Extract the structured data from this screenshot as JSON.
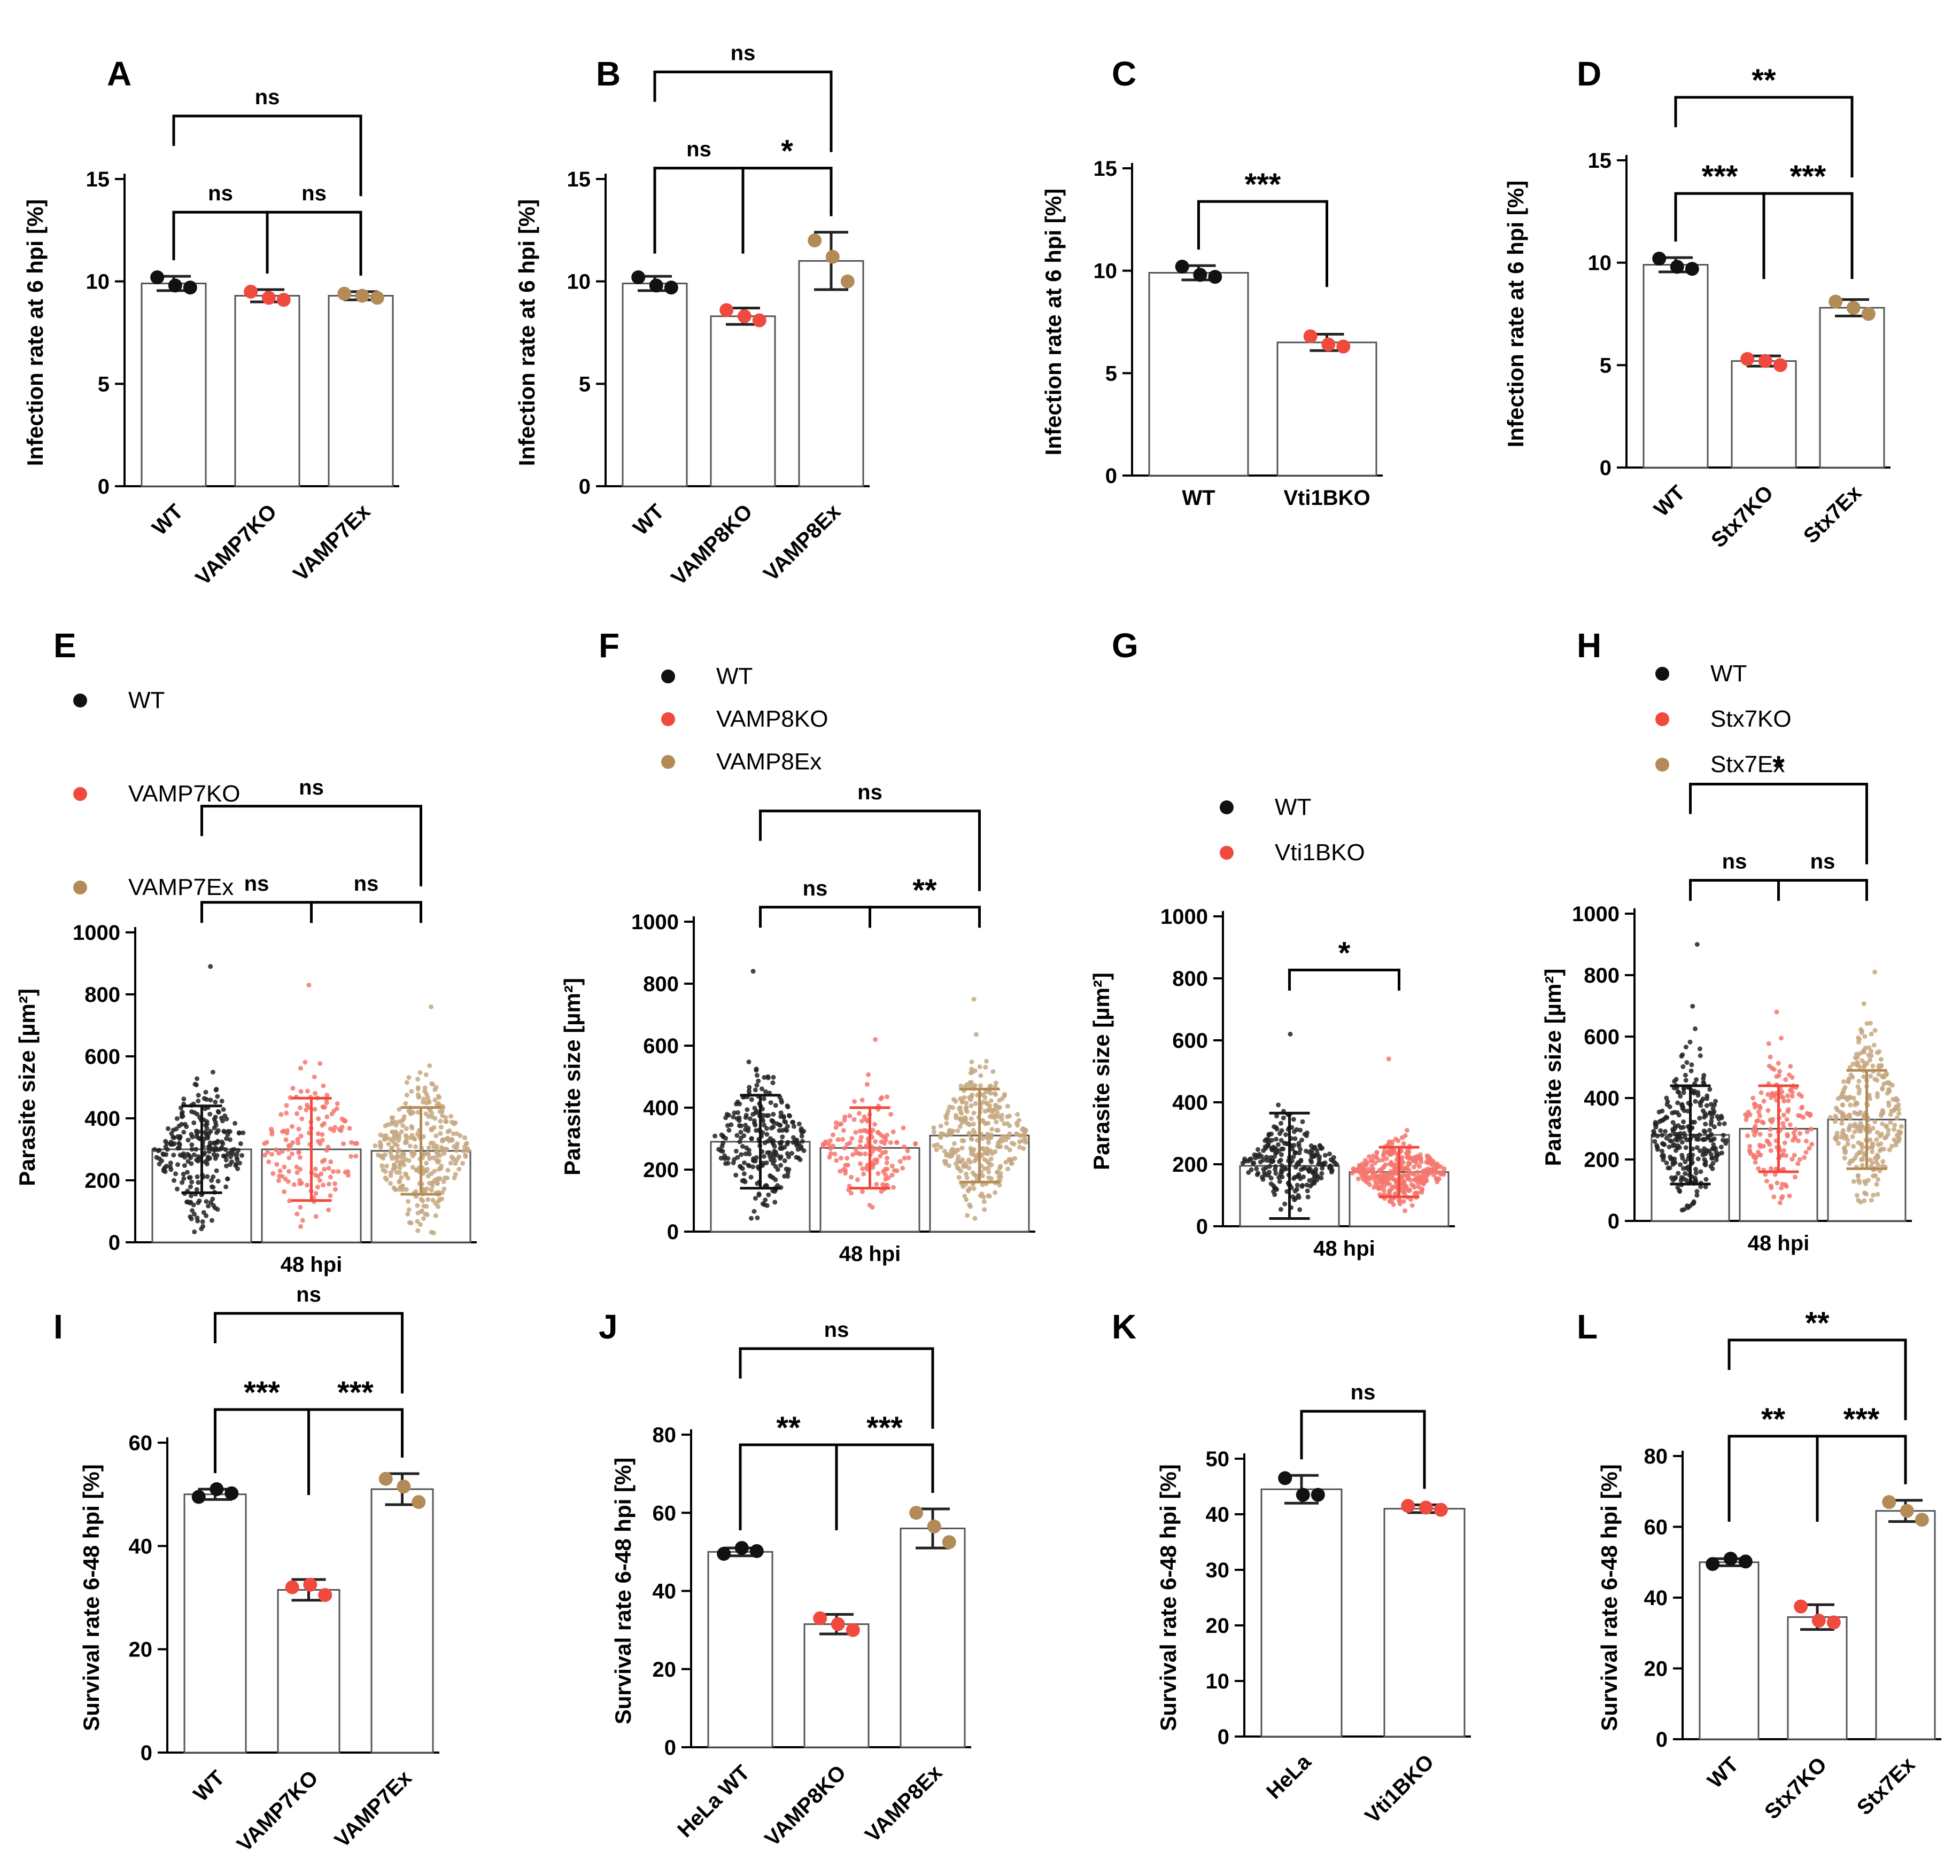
{
  "chart_data": [
    {
      "panel": "A",
      "type": "bar",
      "ylabel": "Infection rate at 6 hpi [%]",
      "xlabel": "",
      "ylim": [
        0,
        15
      ],
      "yticks": [
        0,
        5,
        10,
        15
      ],
      "categories": [
        "WT",
        "VAMP7KO",
        "VAMP7Ex"
      ],
      "values": [
        9.9,
        9.3,
        9.3
      ],
      "errors": [
        0.35,
        0.3,
        0.2
      ],
      "points": [
        [
          10.2,
          9.7,
          9.8
        ],
        [
          9.5,
          9.1,
          9.2
        ],
        [
          9.4,
          9.2,
          9.3
        ]
      ],
      "colors": [
        "#111111",
        "#f0493d",
        "#b38b57"
      ],
      "legend": [],
      "comparisons": [
        {
          "from": 0,
          "to": 1,
          "label": "ns"
        },
        {
          "from": 1,
          "to": 2,
          "label": "ns"
        },
        {
          "from": 0,
          "to": 2,
          "label": "ns"
        }
      ]
    },
    {
      "panel": "B",
      "type": "bar",
      "ylabel": "Infection rate at 6 hpi [%]",
      "xlabel": "",
      "ylim": [
        0,
        15
      ],
      "yticks": [
        0,
        5,
        10,
        15
      ],
      "categories": [
        "WT",
        "VAMP8KO",
        "VAMP8Ex"
      ],
      "values": [
        9.9,
        8.3,
        11.0
      ],
      "errors": [
        0.35,
        0.4,
        1.4
      ],
      "points": [
        [
          10.2,
          9.7,
          9.8
        ],
        [
          8.6,
          8.1,
          8.3
        ],
        [
          12.0,
          10.0,
          11.2
        ]
      ],
      "colors": [
        "#111111",
        "#f0493d",
        "#b38b57"
      ],
      "legend": [],
      "comparisons": [
        {
          "from": 0,
          "to": 1,
          "label": "ns"
        },
        {
          "from": 1,
          "to": 2,
          "label": "*"
        },
        {
          "from": 0,
          "to": 2,
          "label": "ns"
        }
      ]
    },
    {
      "panel": "C",
      "type": "bar",
      "ylabel": "Infection rate at 6 hpi [%]",
      "xlabel": "",
      "ylim": [
        0,
        15
      ],
      "yticks": [
        0,
        5,
        10,
        15
      ],
      "categories": [
        "WT",
        "Vti1BKO"
      ],
      "values": [
        9.9,
        6.5
      ],
      "errors": [
        0.35,
        0.4
      ],
      "points": [
        [
          10.2,
          9.7,
          9.8
        ],
        [
          6.8,
          6.3,
          6.4
        ]
      ],
      "colors": [
        "#111111",
        "#f0493d"
      ],
      "legend": [],
      "comparisons": [
        {
          "from": 0,
          "to": 1,
          "label": "***"
        }
      ]
    },
    {
      "panel": "D",
      "type": "bar",
      "ylabel": "Infection rate at 6 hpi [%]",
      "xlabel": "",
      "ylim": [
        0,
        15
      ],
      "yticks": [
        0,
        5,
        10,
        15
      ],
      "categories": [
        "WT",
        "Stx7KO",
        "Stx7Ex"
      ],
      "values": [
        9.9,
        5.2,
        7.8
      ],
      "errors": [
        0.35,
        0.25,
        0.4
      ],
      "points": [
        [
          10.2,
          9.7,
          9.8
        ],
        [
          5.3,
          5.0,
          5.2
        ],
        [
          8.1,
          7.5,
          7.8
        ]
      ],
      "colors": [
        "#111111",
        "#f0493d",
        "#b38b57"
      ],
      "legend": [],
      "comparisons": [
        {
          "from": 0,
          "to": 1,
          "label": "***"
        },
        {
          "from": 1,
          "to": 2,
          "label": "***"
        },
        {
          "from": 0,
          "to": 2,
          "label": "**"
        }
      ]
    },
    {
      "panel": "E",
      "type": "bar",
      "ylabel": "Parasite size [µm²]",
      "xlabel": "48 hpi",
      "ylim": [
        0,
        1000
      ],
      "yticks": [
        0,
        200,
        400,
        600,
        800,
        1000
      ],
      "categories": [
        "",
        "",
        ""
      ],
      "series_names": [
        "WT",
        "VAMP7KO",
        "VAMP7Ex"
      ],
      "values": [
        300,
        300,
        295
      ],
      "errors": [
        140,
        165,
        140
      ],
      "scatter": [
        {
          "n": 260,
          "mean": 300,
          "sd": 120,
          "min": 30,
          "max": 890
        },
        {
          "n": 150,
          "mean": 300,
          "sd": 140,
          "min": 40,
          "max": 830
        },
        {
          "n": 340,
          "mean": 295,
          "sd": 125,
          "min": 30,
          "max": 760
        }
      ],
      "colors": [
        "#111111",
        "#f0493d",
        "#b38b57"
      ],
      "legend": [
        "WT",
        "VAMP7KO",
        "VAMP7Ex"
      ],
      "comparisons": [
        {
          "from": 0,
          "to": 1,
          "label": "ns"
        },
        {
          "from": 1,
          "to": 2,
          "label": "ns"
        },
        {
          "from": 0,
          "to": 2,
          "label": "ns"
        }
      ]
    },
    {
      "panel": "F",
      "type": "bar",
      "ylabel": "Parasite size [µm²]",
      "xlabel": "48 hpi",
      "ylim": [
        0,
        1000
      ],
      "yticks": [
        0,
        200,
        400,
        600,
        800,
        1000
      ],
      "categories": [
        "",
        "",
        ""
      ],
      "series_names": [
        "WT",
        "VAMP8KO",
        "VAMP8Ex"
      ],
      "values": [
        290,
        270,
        310
      ],
      "errors": [
        150,
        130,
        150
      ],
      "scatter": [
        {
          "n": 260,
          "mean": 290,
          "sd": 115,
          "min": 30,
          "max": 840
        },
        {
          "n": 150,
          "mean": 270,
          "sd": 110,
          "min": 40,
          "max": 620
        },
        {
          "n": 330,
          "mean": 310,
          "sd": 125,
          "min": 40,
          "max": 750
        }
      ],
      "colors": [
        "#111111",
        "#f0493d",
        "#b38b57"
      ],
      "legend": [
        "WT",
        "VAMP8KO",
        "VAMP8Ex"
      ],
      "comparisons": [
        {
          "from": 0,
          "to": 1,
          "label": "ns"
        },
        {
          "from": 1,
          "to": 2,
          "label": "**"
        },
        {
          "from": 0,
          "to": 2,
          "label": "ns"
        }
      ]
    },
    {
      "panel": "G",
      "type": "bar",
      "ylabel": "Parasite size [µm²]",
      "xlabel": "48 hpi",
      "ylim": [
        0,
        1000
      ],
      "yticks": [
        0,
        200,
        400,
        600,
        800,
        1000
      ],
      "categories": [
        "",
        ""
      ],
      "series_names": [
        "WT",
        "Vti1BKO"
      ],
      "values": [
        195,
        175
      ],
      "errors": [
        170,
        80
      ],
      "scatter": [
        {
          "n": 240,
          "mean": 200,
          "sd": 75,
          "min": 30,
          "max": 620
        },
        {
          "n": 360,
          "mean": 175,
          "sd": 55,
          "min": 40,
          "max": 540
        }
      ],
      "colors": [
        "#111111",
        "#f0493d"
      ],
      "legend": [
        "WT",
        "Vti1BKO"
      ],
      "comparisons": [
        {
          "from": 0,
          "to": 1,
          "label": "*"
        }
      ]
    },
    {
      "panel": "H",
      "type": "bar",
      "ylabel": "Parasite size [µm²]",
      "xlabel": "48 hpi",
      "ylim": [
        0,
        1000
      ],
      "yticks": [
        0,
        200,
        400,
        600,
        800,
        1000
      ],
      "categories": [
        "",
        "",
        ""
      ],
      "series_names": [
        "WT",
        "Stx7KO",
        "Stx7Ex"
      ],
      "values": [
        280,
        300,
        330
      ],
      "errors": [
        160,
        140,
        160
      ],
      "scatter": [
        {
          "n": 280,
          "mean": 285,
          "sd": 130,
          "min": 30,
          "max": 900
        },
        {
          "n": 170,
          "mean": 300,
          "sd": 125,
          "min": 30,
          "max": 680
        },
        {
          "n": 300,
          "mean": 330,
          "sd": 140,
          "min": 40,
          "max": 810
        }
      ],
      "colors": [
        "#111111",
        "#f0493d",
        "#b38b57"
      ],
      "legend": [
        "WT",
        "Stx7KO",
        "Stx7Ex"
      ],
      "comparisons": [
        {
          "from": 0,
          "to": 1,
          "label": "ns"
        },
        {
          "from": 1,
          "to": 2,
          "label": "ns"
        },
        {
          "from": 0,
          "to": 2,
          "label": "*"
        }
      ]
    },
    {
      "panel": "I",
      "type": "bar",
      "ylabel": "Survival rate 6-48 hpi [%]",
      "xlabel": "",
      "ylim": [
        0,
        60
      ],
      "yticks": [
        0,
        20,
        40,
        60
      ],
      "categories": [
        "WT",
        "VAMP7KO",
        "VAMP7Ex"
      ],
      "values": [
        50,
        31.5,
        51
      ],
      "errors": [
        1.0,
        2.0,
        3.0
      ],
      "points": [
        [
          49.5,
          50.2,
          51.0
        ],
        [
          32.0,
          30.5,
          32.5
        ],
        [
          53.0,
          48.5,
          51.5
        ]
      ],
      "colors": [
        "#111111",
        "#f0493d",
        "#b38b57"
      ],
      "legend": [],
      "comparisons": [
        {
          "from": 0,
          "to": 1,
          "label": "***"
        },
        {
          "from": 1,
          "to": 2,
          "label": "***"
        },
        {
          "from": 0,
          "to": 2,
          "label": "ns"
        }
      ]
    },
    {
      "panel": "J",
      "type": "bar",
      "ylabel": "Survival rate 6-48 hpi [%]",
      "xlabel": "",
      "ylim": [
        0,
        80
      ],
      "yticks": [
        0,
        20,
        40,
        60,
        80
      ],
      "categories": [
        "HeLa WT",
        "VAMP8KO",
        "VAMP8Ex"
      ],
      "values": [
        50,
        31.5,
        56
      ],
      "errors": [
        1.0,
        2.5,
        5.0
      ],
      "points": [
        [
          49.5,
          50.2,
          51.0
        ],
        [
          33.0,
          30.0,
          31.5
        ],
        [
          60.0,
          52.5,
          56.5
        ]
      ],
      "colors": [
        "#111111",
        "#f0493d",
        "#b38b57"
      ],
      "legend": [],
      "comparisons": [
        {
          "from": 0,
          "to": 1,
          "label": "**"
        },
        {
          "from": 1,
          "to": 2,
          "label": "***"
        },
        {
          "from": 0,
          "to": 2,
          "label": "ns"
        }
      ]
    },
    {
      "panel": "K",
      "type": "bar",
      "ylabel": "Survival rate 6-48 hpi [%]",
      "xlabel": "",
      "ylim": [
        0,
        50
      ],
      "yticks": [
        0,
        10,
        20,
        30,
        40,
        50
      ],
      "categories": [
        "HeLa",
        "Vti1BKO"
      ],
      "values": [
        44.5,
        41
      ],
      "errors": [
        2.5,
        0.7
      ],
      "points": [
        [
          46.5,
          43.5,
          43.5
        ],
        [
          41.5,
          40.8,
          41.2
        ]
      ],
      "colors": [
        "#111111",
        "#f0493d"
      ],
      "legend": [],
      "comparisons": [
        {
          "from": 0,
          "to": 1,
          "label": "ns"
        }
      ]
    },
    {
      "panel": "L",
      "type": "bar",
      "ylabel": "Survival rate 6-48 hpi [%]",
      "xlabel": "",
      "ylim": [
        0,
        80
      ],
      "yticks": [
        0,
        20,
        40,
        60,
        80
      ],
      "categories": [
        "WT",
        "Stx7KO",
        "Stx7Ex"
      ],
      "values": [
        50,
        34.5,
        64.5
      ],
      "errors": [
        1.0,
        3.5,
        3.0
      ],
      "points": [
        [
          49.5,
          50.2,
          51.0
        ],
        [
          37.5,
          33.0,
          33.5
        ],
        [
          67.0,
          62.0,
          64.5
        ]
      ],
      "colors": [
        "#111111",
        "#f0493d",
        "#b38b57"
      ],
      "legend": [],
      "comparisons": [
        {
          "from": 0,
          "to": 1,
          "label": "**"
        },
        {
          "from": 1,
          "to": 2,
          "label": "***"
        },
        {
          "from": 0,
          "to": 2,
          "label": "**"
        }
      ]
    }
  ]
}
